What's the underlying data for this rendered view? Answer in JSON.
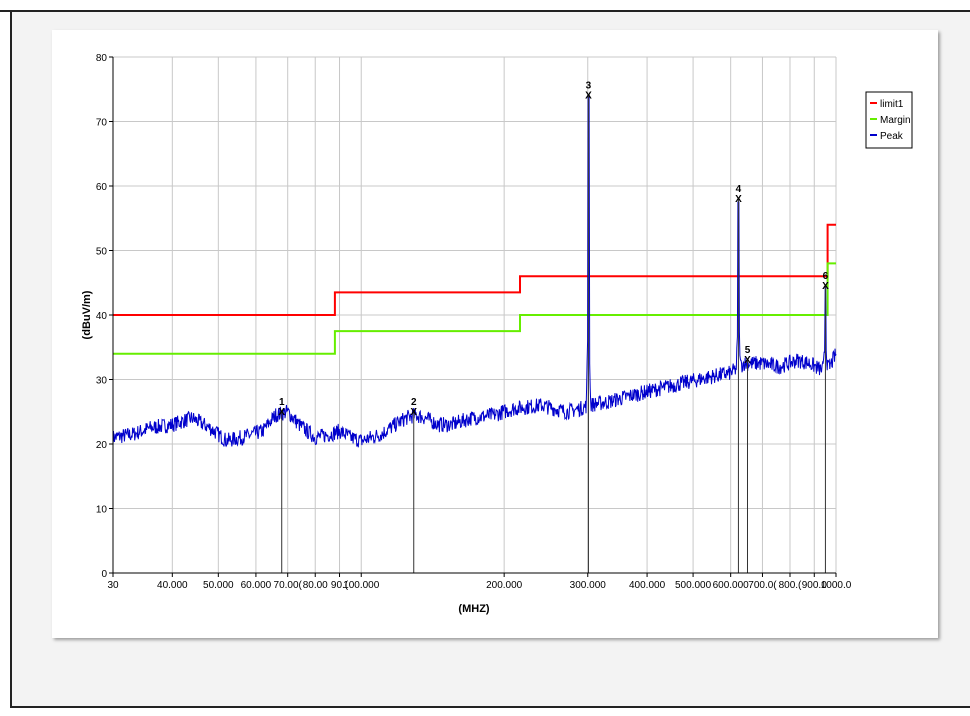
{
  "chart_data": {
    "type": "line",
    "xlabel": "(MHZ)",
    "ylabel": "(dBuV/m)",
    "x_scale": "log",
    "xlim": [
      30,
      1000
    ],
    "ylim": [
      0,
      80
    ],
    "grid": true,
    "legend_position": "right",
    "x_ticks": [
      {
        "value": 30,
        "label": "30"
      },
      {
        "value": 40,
        "label": "40.000"
      },
      {
        "value": 50,
        "label": "50.000"
      },
      {
        "value": 60,
        "label": "60.000"
      },
      {
        "value": 70,
        "label": "70.00("
      },
      {
        "value": 80,
        "label": "80.00"
      },
      {
        "value": 90,
        "label": "90.("
      },
      {
        "value": 100,
        "label": "100.000"
      },
      {
        "value": 200,
        "label": "200.000"
      },
      {
        "value": 300,
        "label": "300.000"
      },
      {
        "value": 400,
        "label": "400.000"
      },
      {
        "value": 500,
        "label": "500.000"
      },
      {
        "value": 600,
        "label": "600.000"
      },
      {
        "value": 700,
        "label": "700.0("
      },
      {
        "value": 800,
        "label": "800.("
      },
      {
        "value": 900,
        "label": "900.0"
      },
      {
        "value": 1000,
        "label": "1000.0"
      }
    ],
    "y_ticks": [
      0,
      10,
      20,
      30,
      40,
      50,
      60,
      70,
      80
    ],
    "series": [
      {
        "name": "limit1",
        "color": "#ff0000",
        "type": "step",
        "points": [
          [
            30,
            40
          ],
          [
            88,
            40
          ],
          [
            88,
            43.5
          ],
          [
            216,
            43.5
          ],
          [
            216,
            46
          ],
          [
            960,
            46
          ],
          [
            960,
            54
          ],
          [
            1000,
            54
          ]
        ]
      },
      {
        "name": "Margin",
        "color": "#66ee00",
        "type": "step",
        "points": [
          [
            30,
            34
          ],
          [
            88,
            34
          ],
          [
            88,
            37.5
          ],
          [
            216,
            37.5
          ],
          [
            216,
            40
          ],
          [
            960,
            40
          ],
          [
            960,
            48
          ],
          [
            1000,
            48
          ]
        ]
      },
      {
        "name": "Peak",
        "color": "#0000cc",
        "type": "line",
        "profile": [
          [
            30,
            21
          ],
          [
            33,
            21.5
          ],
          [
            36,
            22.5
          ],
          [
            40,
            23
          ],
          [
            44,
            24
          ],
          [
            48,
            22.5
          ],
          [
            52,
            20.5
          ],
          [
            56,
            21
          ],
          [
            62,
            22
          ],
          [
            66,
            24.5
          ],
          [
            70,
            25
          ],
          [
            74,
            23
          ],
          [
            80,
            21
          ],
          [
            86,
            21.5
          ],
          [
            90,
            22
          ],
          [
            95,
            21
          ],
          [
            100,
            20.5
          ],
          [
            105,
            21
          ],
          [
            110,
            21.5
          ],
          [
            118,
            23
          ],
          [
            124,
            24
          ],
          [
            130,
            24.5
          ],
          [
            137,
            24
          ],
          [
            145,
            23
          ],
          [
            155,
            23
          ],
          [
            170,
            24
          ],
          [
            190,
            24.5
          ],
          [
            210,
            25.5
          ],
          [
            240,
            26
          ],
          [
            270,
            25
          ],
          [
            290,
            25.5
          ],
          [
            300,
            26
          ],
          [
            330,
            26.5
          ],
          [
            370,
            27.5
          ],
          [
            420,
            28.5
          ],
          [
            480,
            29.5
          ],
          [
            550,
            30.5
          ],
          [
            600,
            31
          ],
          [
            640,
            32.5
          ],
          [
            700,
            32.5
          ],
          [
            760,
            32
          ],
          [
            830,
            33
          ],
          [
            880,
            32.5
          ],
          [
            930,
            31.5
          ],
          [
            970,
            32
          ],
          [
            1000,
            34
          ]
        ],
        "spikes": [
          {
            "freq": 301,
            "level": 74
          },
          {
            "freq": 623,
            "level": 57.5
          },
          {
            "freq": 950,
            "level": 44.5
          }
        ]
      }
    ],
    "markers": [
      {
        "label": "1",
        "freq": 68,
        "level": 25
      },
      {
        "label": "2",
        "freq": 129,
        "level": 25
      },
      {
        "label": "3",
        "freq": 301,
        "level": 74
      },
      {
        "label": "4",
        "freq": 623,
        "level": 58
      },
      {
        "label": "5",
        "freq": 651,
        "level": 33
      },
      {
        "label": "6",
        "freq": 950,
        "level": 44.5
      }
    ],
    "legend": [
      {
        "name": "limit1",
        "color": "#ff0000"
      },
      {
        "name": "Margin",
        "color": "#66ee00"
      },
      {
        "name": "Peak",
        "color": "#0000cc"
      }
    ]
  }
}
